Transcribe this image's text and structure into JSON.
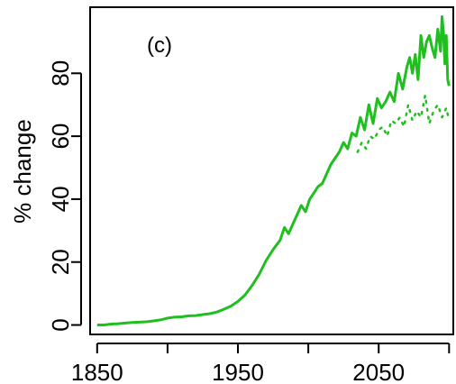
{
  "chart_data": {
    "type": "line",
    "panel_label": "(c)",
    "title": "",
    "xlabel": "",
    "ylabel": "% change",
    "xlim": [
      1845,
      2103
    ],
    "ylim": [
      -3,
      101
    ],
    "x_ticks": [
      1850,
      1900,
      1950,
      2000,
      2050,
      2100
    ],
    "x_tick_labels": [
      "1850",
      "",
      "1950",
      "",
      "2050",
      ""
    ],
    "y_ticks": [
      0,
      20,
      40,
      60,
      80
    ],
    "y_tick_labels": [
      "0",
      "20",
      "40",
      "60",
      "80"
    ],
    "grid": false,
    "legend": "none",
    "series": [
      {
        "style": "solid",
        "color": "#1fbf1f",
        "x": [
          1850,
          1855,
          1860,
          1865,
          1870,
          1875,
          1880,
          1885,
          1890,
          1895,
          1900,
          1905,
          1910,
          1915,
          1920,
          1925,
          1930,
          1935,
          1940,
          1945,
          1950,
          1955,
          1960,
          1965,
          1970,
          1975,
          1980,
          1983,
          1986,
          1989,
          1992,
          1995,
          1998,
          2001,
          2004,
          2007,
          2010,
          2013,
          2016,
          2019,
          2022,
          2025,
          2028,
          2031,
          2034,
          2037,
          2040,
          2043,
          2046,
          2049,
          2052,
          2055,
          2058,
          2061,
          2064,
          2067,
          2070,
          2072,
          2074,
          2076,
          2078,
          2080,
          2082,
          2084,
          2086,
          2088,
          2090,
          2092,
          2094,
          2095,
          2096,
          2097,
          2098,
          2099,
          2100
        ],
        "y": [
          0,
          0,
          0.3,
          0.4,
          0.6,
          0.8,
          0.9,
          1.0,
          1.3,
          1.6,
          2.2,
          2.5,
          2.6,
          2.9,
          3.0,
          3.3,
          3.6,
          4.1,
          5.0,
          6.0,
          7.5,
          9.5,
          12.5,
          16,
          20.5,
          24,
          27,
          31,
          29,
          32,
          35,
          38,
          36,
          40,
          42,
          44,
          45,
          48,
          51,
          53,
          55,
          58,
          56,
          61,
          60,
          66,
          62,
          70,
          64,
          72,
          69,
          71,
          74,
          71,
          80,
          75,
          82,
          85,
          80,
          86,
          78,
          92,
          85,
          90,
          92,
          88,
          85,
          94,
          87,
          98,
          93,
          83,
          92,
          78,
          76
        ]
      },
      {
        "style": "dotted",
        "color": "#1fbf1f",
        "x": [
          2035,
          2038,
          2041,
          2044,
          2047,
          2050,
          2053,
          2056,
          2059,
          2062,
          2065,
          2068,
          2071,
          2074,
          2077,
          2080,
          2083,
          2086,
          2089,
          2092,
          2095,
          2098,
          2100
        ],
        "y": [
          55,
          58,
          56,
          60,
          59,
          62,
          63,
          60,
          65,
          64,
          66,
          63,
          70,
          65,
          68,
          66,
          73,
          64,
          68,
          70,
          66,
          69,
          65
        ]
      }
    ]
  }
}
